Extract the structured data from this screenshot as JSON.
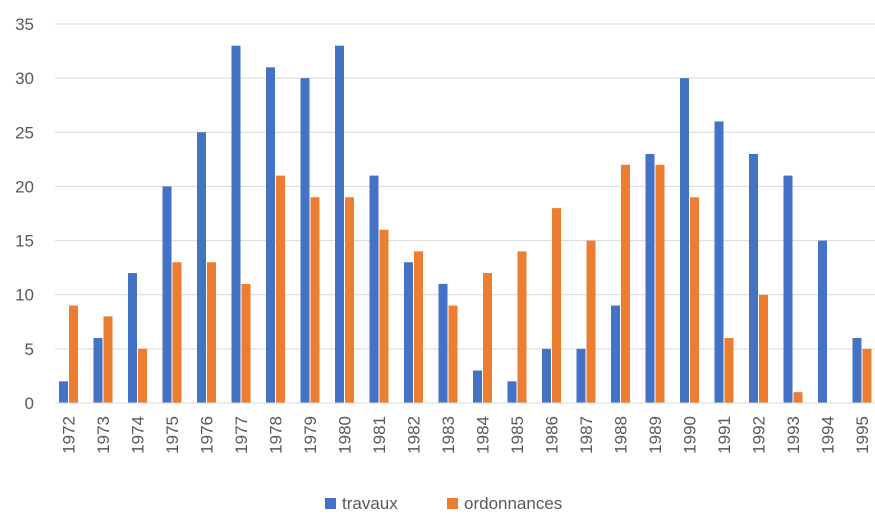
{
  "chart_data": {
    "type": "bar",
    "title": "",
    "xlabel": "",
    "ylabel": "",
    "ylim": [
      0,
      35
    ],
    "yticks": [
      0,
      5,
      10,
      15,
      20,
      25,
      30,
      35
    ],
    "grid": true,
    "legend_position": "bottom",
    "categories": [
      "1972",
      "1973",
      "1974",
      "1975",
      "1976",
      "1977",
      "1978",
      "1979",
      "1980",
      "1981",
      "1982",
      "1983",
      "1984",
      "1985",
      "1986",
      "1987",
      "1988",
      "1989",
      "1990",
      "1991",
      "1992",
      "1993",
      "1994",
      "1995"
    ],
    "series": [
      {
        "name": "travaux",
        "color": "#4472C4",
        "values": [
          2,
          6,
          12,
          20,
          25,
          33,
          31,
          30,
          33,
          21,
          13,
          11,
          3,
          2,
          5,
          5,
          9,
          23,
          30,
          26,
          23,
          21,
          15,
          6
        ]
      },
      {
        "name": "ordonnances",
        "color": "#ED7D31",
        "values": [
          9,
          8,
          5,
          13,
          13,
          11,
          21,
          19,
          19,
          16,
          14,
          9,
          12,
          14,
          18,
          15,
          22,
          22,
          19,
          6,
          10,
          1,
          0,
          5
        ]
      }
    ]
  }
}
